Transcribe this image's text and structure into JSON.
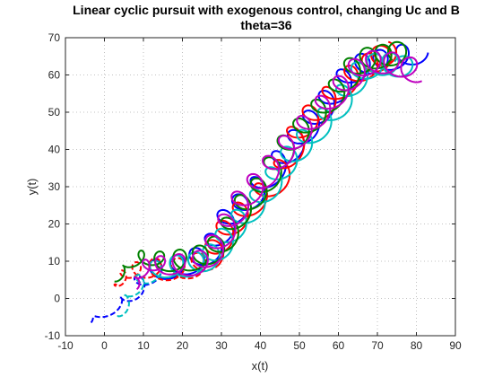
{
  "chart_data": {
    "type": "line",
    "title": "Linear cyclic pursuit with exogenous control, changing Uc and B",
    "subtitle": "theta=36",
    "xlabel": "x(t)",
    "ylabel": "y(t)",
    "xlim": [
      -10,
      90
    ],
    "ylim": [
      -10,
      70
    ],
    "xticks": [
      -10,
      0,
      10,
      20,
      30,
      40,
      50,
      60,
      70,
      80,
      90
    ],
    "yticks": [
      -10,
      0,
      10,
      20,
      30,
      40,
      50,
      60,
      70
    ],
    "grid": true,
    "grid_style": "dotted",
    "series": [
      {
        "color": "#0000ff",
        "style": "dashed-then-solid",
        "dash_until": 2,
        "centers": [
          [
            -4,
            -6.5
          ],
          [
            6,
            0
          ],
          [
            12,
            7
          ],
          [
            20,
            9
          ],
          [
            27,
            13
          ],
          [
            32,
            22
          ],
          [
            38,
            28
          ],
          [
            46,
            38
          ],
          [
            52,
            46
          ],
          [
            58,
            54
          ],
          [
            65,
            62
          ],
          [
            72,
            64
          ],
          [
            80,
            66
          ]
        ],
        "loop_radius": 3.0,
        "loops": 18,
        "phase": 0.0
      },
      {
        "color": "#ff0000",
        "style": "dashed-then-solid",
        "dash_until": 4,
        "centers": [
          [
            3,
            3
          ],
          [
            6,
            7
          ],
          [
            12,
            8
          ],
          [
            20,
            8
          ],
          [
            27,
            11
          ],
          [
            31,
            18
          ],
          [
            37,
            25
          ],
          [
            45,
            33
          ],
          [
            50,
            45
          ],
          [
            56,
            52
          ],
          [
            64,
            60
          ],
          [
            70,
            64
          ],
          [
            72,
            66
          ]
        ],
        "loop_radius": 3.0,
        "loops": 17,
        "phase": 1.3
      },
      {
        "color": "#00bfbf",
        "style": "dashed-then-solid",
        "dash_until": 2,
        "centers": [
          [
            4,
            -5
          ],
          [
            8,
            3
          ],
          [
            14,
            8
          ],
          [
            22,
            9
          ],
          [
            28,
            12
          ],
          [
            33,
            19
          ],
          [
            40,
            27
          ],
          [
            46,
            36
          ],
          [
            52,
            43
          ],
          [
            60,
            52
          ],
          [
            66,
            61
          ],
          [
            72,
            63
          ],
          [
            77,
            62
          ]
        ],
        "loop_radius": 3.0,
        "loops": 18,
        "phase": 2.6
      },
      {
        "color": "#008000",
        "style": "solid",
        "dash_until": 0,
        "centers": [
          [
            3,
            5
          ],
          [
            9,
            11
          ],
          [
            16,
            10
          ],
          [
            24,
            11
          ],
          [
            30,
            15
          ],
          [
            35,
            24
          ],
          [
            41,
            31
          ],
          [
            46,
            40
          ],
          [
            52,
            47
          ],
          [
            59,
            55
          ],
          [
            65,
            63
          ],
          [
            71,
            65
          ],
          [
            76,
            66
          ]
        ],
        "loop_radius": 3.0,
        "loops": 18,
        "phase": 3.9
      },
      {
        "color": "#bf00bf",
        "style": "solid",
        "dash_until": 0,
        "centers": [
          [
            8,
            3
          ],
          [
            11,
            9
          ],
          [
            17,
            9
          ],
          [
            25,
            10
          ],
          [
            30,
            17
          ],
          [
            35,
            26
          ],
          [
            41,
            33
          ],
          [
            47,
            41
          ],
          [
            54,
            49
          ],
          [
            61,
            57
          ],
          [
            67,
            63
          ],
          [
            74,
            63
          ],
          [
            80,
            61
          ]
        ],
        "loop_radius": 3.0,
        "loops": 18,
        "phase": 5.2
      }
    ]
  }
}
